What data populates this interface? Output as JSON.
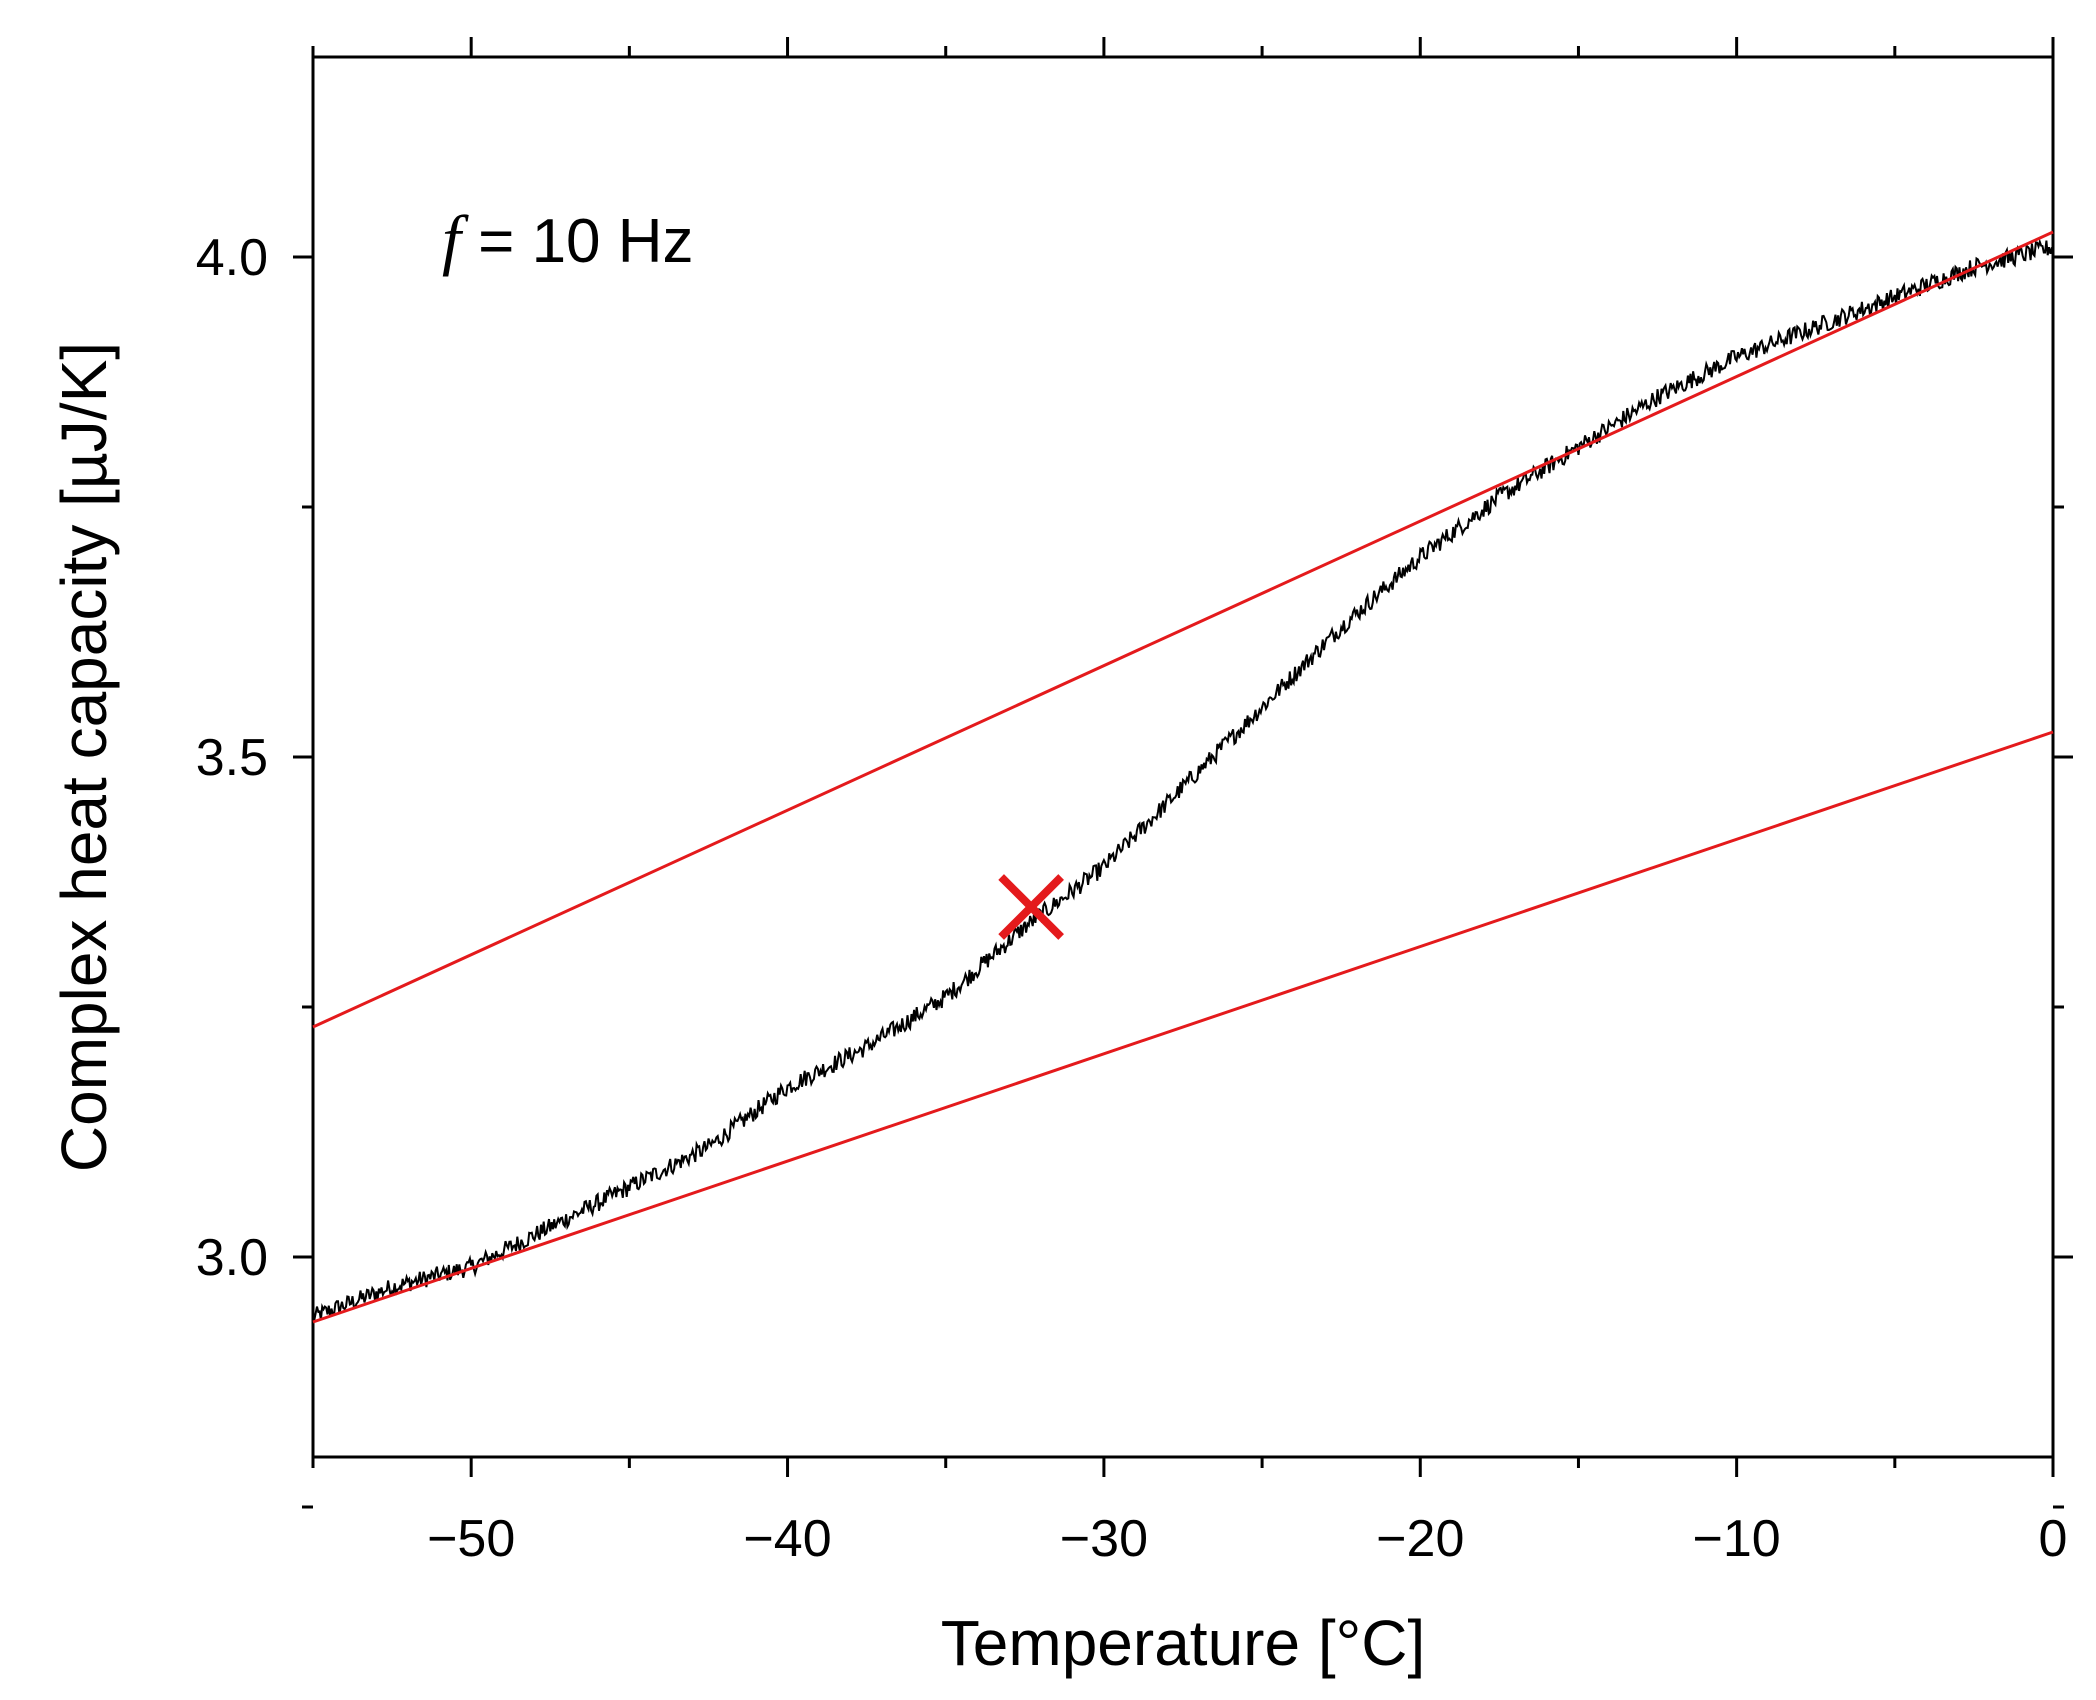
{
  "chart_data": {
    "type": "line",
    "xlabel": "Temperature [°C]",
    "ylabel": "Complex heat capacity [µJ/K]",
    "xlim": [
      -55,
      0
    ],
    "ylim": [
      2.8,
      4.2
    ],
    "x_ticks": [
      -50,
      -40,
      -30,
      -20,
      -10,
      0
    ],
    "x_tick_labels": [
      "−50",
      "−40",
      "−30",
      "−20",
      "−10",
      "0"
    ],
    "x_minor_ticks": [
      -55,
      -45,
      -35,
      -25,
      -15,
      -5
    ],
    "y_ticks": [
      3.0,
      3.5,
      4.0
    ],
    "y_tick_labels": [
      "3.0",
      "3.5",
      "4.0"
    ],
    "y_minor_ticks": [
      2.75,
      3.25,
      3.75
    ],
    "grid": false,
    "annotation": {
      "italic": "f",
      "text": " = 10 Hz",
      "x": -50.5,
      "y": 4.0
    },
    "colors": {
      "data": "#000000",
      "fit": "#e41a1c",
      "marker": "#e41a1c"
    },
    "series": [
      {
        "style": "noisy-line",
        "color": "#000000",
        "x": [
          -55,
          -52.5,
          -50,
          -47.5,
          -45,
          -42.5,
          -40,
          -37.5,
          -35,
          -32.5,
          -30,
          -27.5,
          -25,
          -22.5,
          -20,
          -17.5,
          -15,
          -12.5,
          -10,
          -7.5,
          -5,
          -2.5,
          0
        ],
        "y": [
          2.94,
          2.97,
          2.99,
          3.03,
          3.07,
          3.11,
          3.17,
          3.21,
          3.26,
          3.33,
          3.39,
          3.47,
          3.55,
          3.63,
          3.7,
          3.76,
          3.81,
          3.86,
          3.9,
          3.93,
          3.96,
          3.99,
          4.01
        ]
      },
      {
        "style": "line",
        "color": "#e41a1c",
        "x": [
          -55,
          0
        ],
        "y": [
          3.23,
          4.025
        ]
      },
      {
        "style": "line",
        "color": "#e41a1c",
        "x": [
          -55,
          0
        ],
        "y": [
          2.935,
          3.525
        ]
      }
    ],
    "markers": [
      {
        "shape": "x",
        "color": "#e41a1c",
        "x": -32.3,
        "y": 3.35
      }
    ]
  }
}
